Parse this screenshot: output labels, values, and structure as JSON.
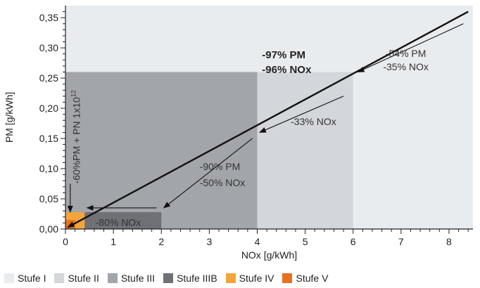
{
  "chart_data": {
    "type": "area",
    "xlabel": "NOx [g/kWh]",
    "ylabel": "PM [g/kWh]",
    "xlim": [
      0,
      8.5
    ],
    "ylim": [
      0,
      0.37
    ],
    "x_ticks": [
      "0",
      "1",
      "2",
      "3",
      "4",
      "5",
      "6",
      "7",
      "8"
    ],
    "y_ticks": [
      "0,00",
      "0,05",
      "0,10",
      "0,15",
      "0,20",
      "0,25",
      "0,30",
      "0,35"
    ],
    "series": [
      {
        "name": "Stufe I",
        "color": "#e9ecef",
        "nox": 8.5,
        "pm": 0.37
      },
      {
        "name": "Stufe II",
        "color": "#d3d6db",
        "nox": 6.0,
        "pm": 0.26
      },
      {
        "name": "Stufe III",
        "color": "#a2a5aa",
        "nox": 4.0,
        "pm": 0.26
      },
      {
        "name": "Stufe IIIB",
        "color": "#6f7177",
        "nox": 2.0,
        "pm": 0.028
      },
      {
        "name": "Stufe IV",
        "color": "#f4a43c",
        "nox": 0.4,
        "pm": 0.028
      },
      {
        "name": "Stufe V",
        "color": "#e8701e",
        "nox": 0.2,
        "pm": 0.015
      }
    ],
    "trend_line": {
      "x": [
        0.05,
        8.4
      ],
      "y": [
        0.003,
        0.36
      ]
    },
    "annotations": [
      {
        "key": "a1",
        "lines": [
          "-54% PM",
          "-35% NOx"
        ]
      },
      {
        "key": "a2",
        "lines": [
          "-97% PM",
          "-96% NOx"
        ],
        "bold": true
      },
      {
        "key": "a3",
        "lines": [
          "-33% NOx"
        ]
      },
      {
        "key": "a4",
        "lines": [
          "-90% PM",
          "-50% NOx"
        ]
      },
      {
        "key": "a5",
        "lines": [
          "-80% NOx"
        ]
      },
      {
        "key": "a6",
        "lines": [
          "-60%PM + PN 1x10",
          "12"
        ]
      }
    ]
  }
}
